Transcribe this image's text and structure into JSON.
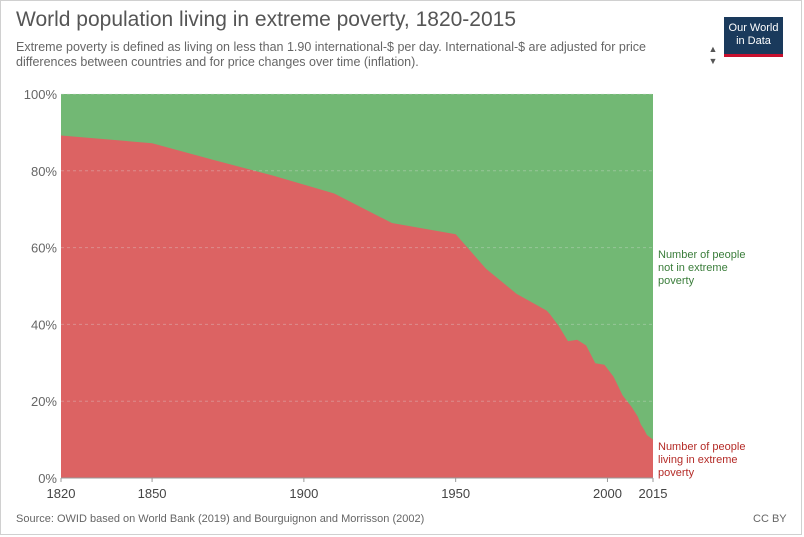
{
  "header": {
    "title": "World population living in extreme poverty, 1820-2015",
    "subtitle": "Extreme poverty is defined as living on less than 1.90 international-$ per day. International-$ are adjusted for price differences between countries and for price changes over time (inflation).",
    "logo_line1": "Our World",
    "logo_line2": "in Data"
  },
  "footer": {
    "source": "Source: OWID based on World Bank (2019) and Bourguignon and Morrisson (2002)",
    "license": "CC BY"
  },
  "colors": {
    "poverty": "#dc6363",
    "not_poverty": "#72b874",
    "poverty_label": "#b42b27",
    "not_poverty_label": "#3a7d3a"
  },
  "chart_data": {
    "type": "area",
    "stacked": true,
    "title": "World population living in extreme poverty, 1820-2015",
    "xlabel": "",
    "ylabel": "",
    "xlim": [
      1820,
      2015
    ],
    "ylim": [
      0,
      100
    ],
    "x_ticks": [
      "1820",
      "1850",
      "1900",
      "1950",
      "2000",
      "2015"
    ],
    "y_ticks": [
      "0%",
      "20%",
      "40%",
      "60%",
      "80%",
      "100%"
    ],
    "grid": true,
    "x": [
      1820,
      1850,
      1870,
      1890,
      1910,
      1929,
      1950,
      1960,
      1970,
      1980,
      1981,
      1984,
      1987,
      1990,
      1993,
      1996,
      1999,
      2002,
      2005,
      2008,
      2010,
      2011,
      2012,
      2013,
      2015
    ],
    "series": [
      {
        "name": "Number of people living in extreme poverty",
        "values": [
          89.2,
          87.2,
          82.9,
          78.7,
          74.1,
          66.4,
          63.5,
          54.5,
          48.0,
          43.6,
          42.7,
          39.5,
          35.6,
          36.0,
          34.5,
          29.9,
          29.5,
          26.4,
          21.5,
          18.5,
          16.0,
          13.9,
          12.7,
          11.2,
          10.0
        ]
      },
      {
        "name": "Number of people not in extreme poverty",
        "values": [
          10.8,
          12.8,
          17.1,
          21.3,
          25.9,
          33.6,
          36.5,
          45.5,
          52.0,
          56.4,
          57.3,
          60.5,
          64.4,
          64.0,
          65.5,
          70.1,
          70.5,
          73.6,
          78.5,
          81.5,
          84.0,
          86.1,
          87.3,
          88.8,
          90.0
        ]
      }
    ],
    "series_labels": {
      "not_poverty": [
        "Number of people",
        "not in extreme",
        "poverty"
      ],
      "poverty": [
        "Number of people",
        "living in extreme",
        "poverty"
      ]
    }
  }
}
